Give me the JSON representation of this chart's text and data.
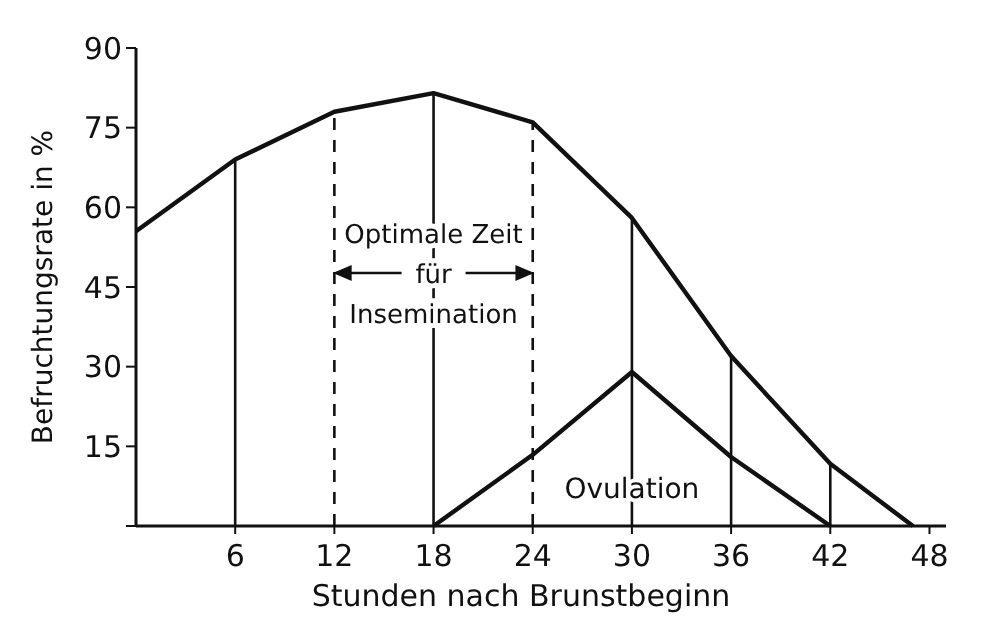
{
  "chart_data": {
    "type": "line",
    "xlabel": "Stunden nach Brunstbeginn",
    "ylabel": "Befruchtungsrate in %",
    "xlim": [
      0,
      49
    ],
    "ylim": [
      0,
      90
    ],
    "xticks": [
      6,
      12,
      18,
      24,
      30,
      36,
      42,
      48
    ],
    "yticks": [
      {
        "value": 0,
        "label": null
      },
      15,
      30,
      45,
      60,
      75,
      90
    ],
    "grid": false,
    "marker": "none",
    "line_style": "solid",
    "series": [
      {
        "color": "#111111",
        "x": [
          0,
          6,
          12,
          18,
          24,
          30,
          36,
          42,
          47
        ],
        "values": [
          55.5,
          69,
          78,
          81.5,
          76,
          58,
          32,
          11.7,
          0
        ]
      },
      {
        "name": "Ovulation",
        "color": "#111111",
        "x": [
          18,
          24,
          30,
          36,
          42
        ],
        "values": [
          0,
          13.4,
          29,
          13,
          0
        ]
      }
    ],
    "ref_lines": [
      {
        "axis": "x",
        "value": 6,
        "line_style": "solid"
      },
      {
        "axis": "x",
        "value": 12,
        "line_style": "dashed"
      },
      {
        "axis": "x",
        "value": 18,
        "line_style": "solid"
      },
      {
        "axis": "x",
        "value": 24,
        "line_style": "dashed"
      },
      {
        "axis": "x",
        "value": 30,
        "line_style": "solid"
      },
      {
        "axis": "x",
        "value": 36,
        "line_style": "solid"
      },
      {
        "axis": "x",
        "value": 42,
        "line_style": "solid"
      }
    ],
    "annotations": [
      "Optimale Zeit\nfür\nInsemination"
    ]
  }
}
